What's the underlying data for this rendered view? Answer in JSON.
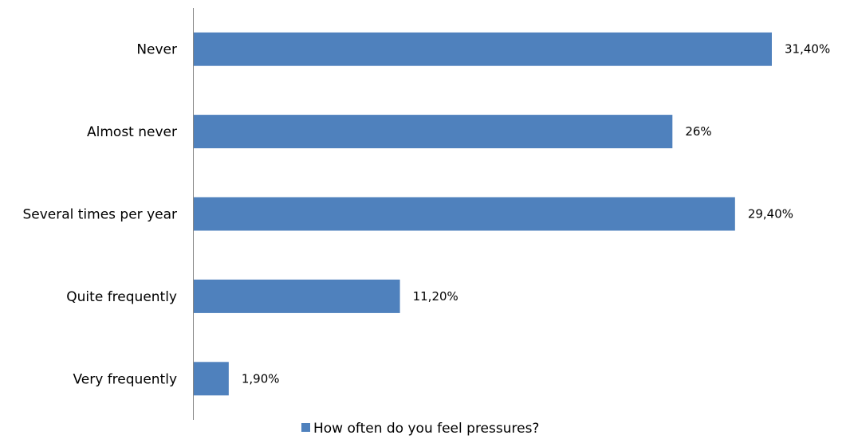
{
  "chart_data": {
    "type": "bar",
    "orientation": "horizontal",
    "categories": [
      "Never",
      "Almost never",
      "Several times per year",
      "Quite frequently",
      "Very frequently"
    ],
    "values": [
      31.4,
      26,
      29.4,
      11.2,
      1.9
    ],
    "value_labels": [
      "31,40%",
      "26%",
      "29,40%",
      "11,20%",
      "1,90%"
    ],
    "series": [
      {
        "name": "How often do you feel pressures?",
        "values": [
          31.4,
          26,
          29.4,
          11.2,
          1.9
        ]
      }
    ],
    "title": "",
    "xlabel": "",
    "ylabel": "",
    "xlim": [
      0,
      35
    ],
    "grid": false,
    "legend_position": "bottom",
    "bar_color": "#4F81BD"
  }
}
